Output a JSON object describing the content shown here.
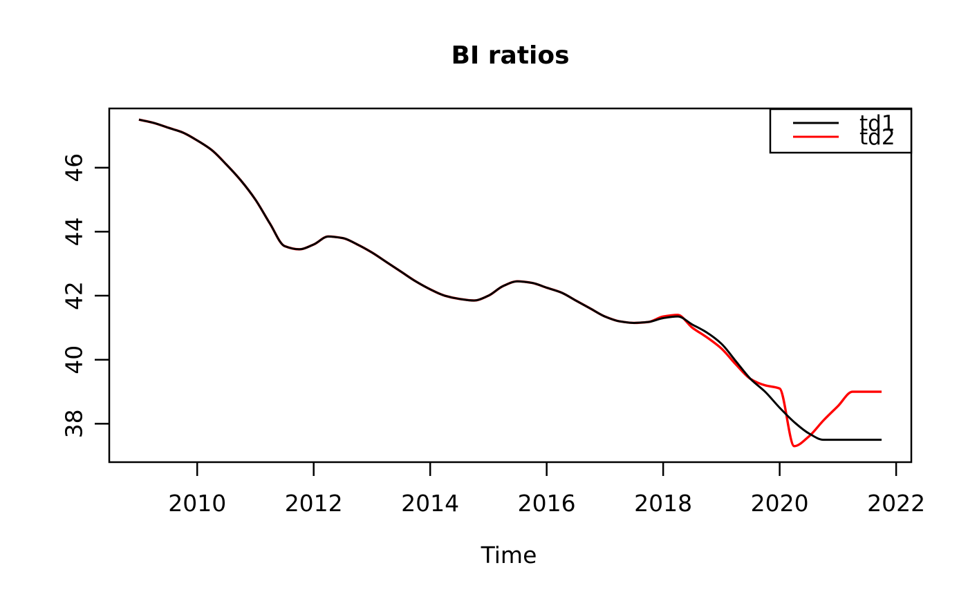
{
  "colors": {
    "background": "#FFFFFF",
    "foreground": "#000000",
    "series_td1": "#000000",
    "series_td2": "#FF0000"
  },
  "chart_data": {
    "type": "line",
    "title": "BI ratios",
    "xlabel": "Time",
    "ylabel": "",
    "grid": false,
    "legend_position": "topright",
    "x_range": [
      2008.49,
      2022.26
    ],
    "y_range": [
      36.8,
      47.85
    ],
    "x_ticks": [
      2010,
      2012,
      2014,
      2016,
      2018,
      2020,
      2022
    ],
    "y_ticks": [
      38,
      40,
      42,
      44,
      46
    ],
    "x": [
      2009.0,
      2009.25,
      2009.5,
      2009.75,
      2010.0,
      2010.25,
      2010.5,
      2010.75,
      2011.0,
      2011.25,
      2011.5,
      2011.75,
      2012.0,
      2012.25,
      2012.5,
      2012.75,
      2013.0,
      2013.25,
      2013.5,
      2013.75,
      2014.0,
      2014.25,
      2014.5,
      2014.75,
      2015.0,
      2015.25,
      2015.5,
      2015.75,
      2016.0,
      2016.25,
      2016.5,
      2016.75,
      2017.0,
      2017.25,
      2017.5,
      2017.75,
      2018.0,
      2018.25,
      2018.5,
      2018.75,
      2019.0,
      2019.25,
      2019.5,
      2019.75,
      2020.0,
      2020.25,
      2020.5,
      2020.75,
      2021.0,
      2021.25,
      2021.5,
      2021.75
    ],
    "series": [
      {
        "name": "td1",
        "color": "#000000",
        "values": [
          47.5,
          47.4,
          47.25,
          47.1,
          46.85,
          46.55,
          46.1,
          45.6,
          45.0,
          44.25,
          43.55,
          43.45,
          43.6,
          43.85,
          43.8,
          43.6,
          43.35,
          43.05,
          42.75,
          42.45,
          42.2,
          42.0,
          41.9,
          41.85,
          42.0,
          42.3,
          42.45,
          42.4,
          42.25,
          42.1,
          41.85,
          41.6,
          41.35,
          41.2,
          41.15,
          41.18,
          41.3,
          41.35,
          41.1,
          40.85,
          40.5,
          39.95,
          39.4,
          39.0,
          38.5,
          38.05,
          37.7,
          37.5,
          37.5,
          37.5,
          37.5,
          37.5
        ]
      },
      {
        "name": "td2",
        "color": "#FF0000",
        "values": [
          47.5,
          47.4,
          47.25,
          47.1,
          46.85,
          46.55,
          46.1,
          45.6,
          45.0,
          44.25,
          43.55,
          43.45,
          43.6,
          43.85,
          43.8,
          43.6,
          43.35,
          43.05,
          42.75,
          42.45,
          42.2,
          42.0,
          41.9,
          41.85,
          42.0,
          42.3,
          42.45,
          42.4,
          42.25,
          42.1,
          41.85,
          41.6,
          41.35,
          41.2,
          41.15,
          41.18,
          41.35,
          41.4,
          41.0,
          40.7,
          40.35,
          39.85,
          39.4,
          39.2,
          39.1,
          37.3,
          37.6,
          38.1,
          38.55,
          39.0,
          39.0,
          39.0
        ]
      }
    ]
  }
}
